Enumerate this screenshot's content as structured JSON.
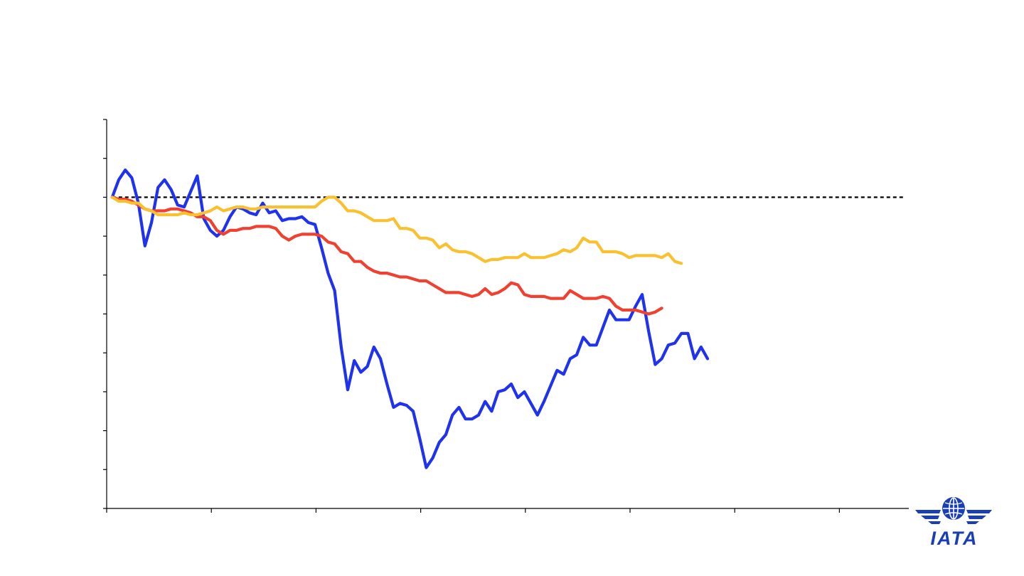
{
  "chart_data": {
    "type": "line",
    "title": "",
    "xlabel": "",
    "ylabel": "",
    "grid": false,
    "legend": "none",
    "x_tick_count": 8,
    "x_range": [
      0,
      124
    ],
    "ylim": [
      -80,
      20
    ],
    "y_tick_step": 10,
    "reference_line": {
      "y": 0,
      "style": "dashed",
      "color": "#000000"
    },
    "series": [
      {
        "color": "#1f32f0",
        "x_start": 1,
        "values": [
          0,
          4.5,
          7,
          5,
          -1.5,
          -12.5,
          -6.5,
          2.5,
          4.5,
          2,
          -2,
          -2.5,
          1.5,
          5.5,
          -5.5,
          -8.5,
          -10,
          -8.5,
          -5,
          -2.5,
          -3,
          -4,
          -4.5,
          -1.5,
          -4,
          -3.5,
          -6,
          -5.5,
          -5.5,
          -5,
          -6.5,
          -7,
          -13,
          -19.5,
          -24,
          -38.5,
          -49.5,
          -42,
          -45,
          -43.5,
          -38.5,
          -41.5,
          -48,
          -54,
          -53,
          -53.5,
          -55,
          -62,
          -69.5,
          -67,
          -63,
          -61,
          -56,
          -54,
          -57,
          -57,
          -56,
          -52.5,
          -55,
          -50,
          -49.5,
          -48,
          -51.5,
          -50,
          -53,
          -56,
          -52.5,
          -48.5,
          -44.5,
          -45.5,
          -41.5,
          -40.5,
          -36,
          -38,
          -38,
          -33.5,
          -29,
          -31.5,
          -31.5,
          -31.5,
          -28,
          -25,
          -34.5,
          -43,
          -41.5,
          -38,
          -37.5,
          -35,
          -35,
          -41.5,
          -38.5,
          -41.5
        ]
      },
      {
        "color": "#f04030",
        "x_start": 1,
        "values": [
          0,
          -0.5,
          -0.5,
          -1,
          -2,
          -3,
          -3.5,
          -3.5,
          -3.5,
          -3,
          -3,
          -3.5,
          -4,
          -5,
          -5,
          -6,
          -8.5,
          -9.5,
          -8.5,
          -8.5,
          -8,
          -8,
          -7.5,
          -7.5,
          -7.5,
          -8,
          -10,
          -11,
          -10,
          -9.5,
          -9.5,
          -9.5,
          -10,
          -11.5,
          -12,
          -14,
          -14.5,
          -16.5,
          -16.5,
          -18,
          -19,
          -19.5,
          -19.5,
          -20,
          -20.5,
          -20.5,
          -21,
          -21.5,
          -21.5,
          -22.5,
          -23.5,
          -24.5,
          -24.5,
          -24.5,
          -25,
          -25.5,
          -25,
          -23.5,
          -25,
          -24.5,
          -23.5,
          -22,
          -22.5,
          -25,
          -25.5,
          -25.5,
          -25.5,
          -26,
          -26,
          -26,
          -24,
          -25,
          -26,
          -26,
          -26,
          -25.5,
          -26,
          -28,
          -29,
          -29,
          -29,
          -29.5,
          -30,
          -29.5,
          -28.5
        ]
      },
      {
        "color": "#f9c030",
        "x_start": 1,
        "values": [
          0,
          -1,
          -1,
          -1.5,
          -1.5,
          -3,
          -3.5,
          -4.5,
          -4.5,
          -4.5,
          -4.5,
          -4,
          -4.5,
          -4.5,
          -4,
          -3.5,
          -2.5,
          -3.5,
          -3,
          -2.5,
          -2.5,
          -3,
          -3,
          -2.5,
          -2.5,
          -2.5,
          -2.5,
          -2.5,
          -2.5,
          -2.5,
          -2.5,
          -2.5,
          -1,
          0,
          0,
          -1.5,
          -3.5,
          -3.5,
          -4,
          -5,
          -6,
          -6,
          -6,
          -5.5,
          -8,
          -8,
          -8.5,
          -10.5,
          -10.5,
          -11,
          -13,
          -12,
          -13.5,
          -14,
          -14,
          -14.5,
          -15.5,
          -16.5,
          -16,
          -16,
          -15.5,
          -15.5,
          -15.5,
          -14.5,
          -15.5,
          -15.5,
          -15.5,
          -15,
          -14.5,
          -13.5,
          -14,
          -13,
          -10.5,
          -11.5,
          -11.5,
          -14,
          -14,
          -14,
          -14.5,
          -15.5,
          -15,
          -15,
          -15,
          -15,
          -15.5,
          -14.5,
          -16.5,
          -17
        ]
      }
    ]
  },
  "logo": {
    "text": "IATA",
    "icon": "globe-wings-icon",
    "color": "#1a3fb5"
  }
}
